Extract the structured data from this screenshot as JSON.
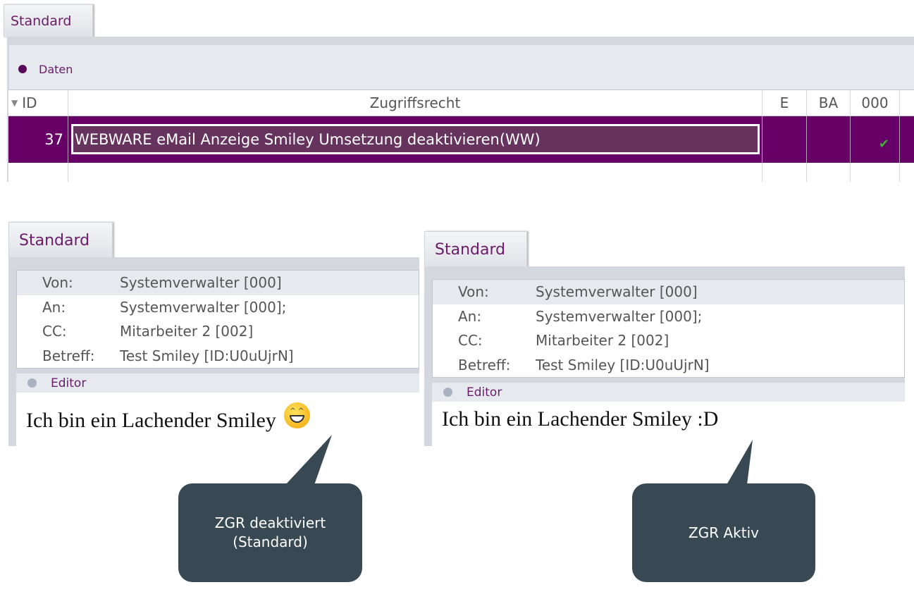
{
  "top": {
    "tab": "Standard",
    "section": "Daten",
    "columns": [
      "ID",
      "Zugriffsrecht",
      "E",
      "BA",
      "000"
    ],
    "row": {
      "id": "37",
      "right": "WEBWARE eMail Anzeige Smiley Umsetzung deaktivieren(WW)",
      "e": false,
      "ba": false,
      "c000": true
    },
    "colors": {
      "selected": "#660066",
      "check": "#3cae3c"
    }
  },
  "left": {
    "tab": "Standard",
    "fields": [
      {
        "label": "Von:",
        "value": "Systemverwalter [000]"
      },
      {
        "label": "An:",
        "value": "Systemverwalter [000];"
      },
      {
        "label": "CC:",
        "value": "Mitarbeiter 2 [002]"
      },
      {
        "label": "Betreff:",
        "value": "Test Smiley [ID:U0uUjrN]"
      }
    ],
    "editor": "Editor",
    "body": "Ich bin ein Lachender Smiley",
    "emoji": "laughing-smiley-icon"
  },
  "right": {
    "tab": "Standard",
    "fields": [
      {
        "label": "Von:",
        "value": "Systemverwalter [000]"
      },
      {
        "label": "An:",
        "value": "Systemverwalter [000];"
      },
      {
        "label": "CC:",
        "value": "Mitarbeiter 2 [002]"
      },
      {
        "label": "Betreff:",
        "value": "Test Smiley [ID:U0uUjrN]"
      }
    ],
    "editor": "Editor",
    "body": "Ich bin ein Lachender Smiley :D"
  },
  "callouts": {
    "left": "ZGR deaktiviert\n(Standard)",
    "right": "ZGR Aktiv",
    "color": "#394953"
  }
}
